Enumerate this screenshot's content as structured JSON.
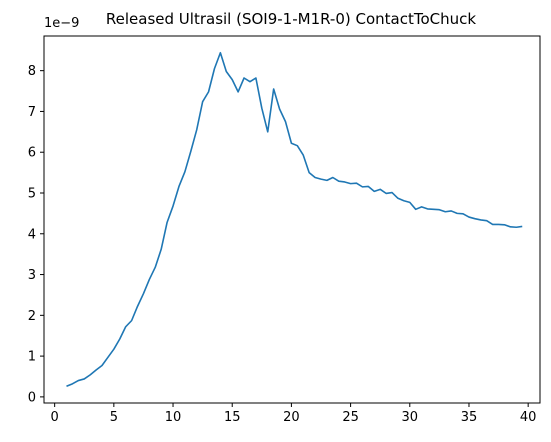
{
  "chart_data": {
    "type": "line",
    "title": "Released Ultrasil (SOI9-1-M1R-0) ContactToChuck",
    "xlabel": "",
    "ylabel": "",
    "y_scale_text": "1e−9",
    "xlim": [
      -0.9,
      41.0
    ],
    "ylim": [
      -0.15,
      8.85
    ],
    "x_ticks": [
      0,
      5,
      10,
      15,
      20,
      25,
      30,
      35,
      40
    ],
    "y_ticks": [
      0,
      1,
      2,
      3,
      4,
      5,
      6,
      7,
      8
    ],
    "grid": false,
    "legend": "none",
    "series": [
      {
        "color": "#1f77b4",
        "x": [
          1.0,
          1.5,
          2.0,
          2.5,
          3.0,
          3.5,
          4.0,
          4.5,
          5.0,
          5.5,
          6.0,
          6.5,
          7.0,
          7.5,
          8.0,
          8.5,
          9.0,
          9.5,
          10.0,
          10.5,
          11.0,
          11.5,
          12.0,
          12.5,
          13.0,
          13.5,
          14.0,
          14.5,
          15.0,
          15.5,
          16.0,
          16.5,
          17.0,
          17.5,
          18.0,
          18.5,
          19.0,
          19.5,
          20.0,
          20.5,
          21.0,
          21.5,
          22.0,
          22.5,
          23.0,
          23.5,
          24.0,
          24.5,
          25.0,
          25.5,
          26.0,
          26.5,
          27.0,
          27.5,
          28.0,
          28.5,
          29.0,
          29.5,
          30.0,
          30.5,
          31.0,
          31.5,
          32.0,
          32.5,
          33.0,
          33.5,
          34.0,
          34.5,
          35.0,
          35.5,
          36.0,
          36.5,
          37.0,
          37.5,
          38.0,
          38.5,
          39.0,
          39.5
        ],
        "y": [
          0.26,
          0.32,
          0.4,
          0.44,
          0.54,
          0.66,
          0.77,
          0.97,
          1.17,
          1.42,
          1.72,
          1.87,
          2.22,
          2.53,
          2.88,
          3.18,
          3.62,
          4.28,
          4.68,
          5.16,
          5.52,
          6.02,
          6.55,
          7.24,
          7.48,
          8.05,
          8.44,
          7.98,
          7.78,
          7.48,
          7.82,
          7.73,
          7.82,
          7.08,
          6.5,
          7.55,
          7.06,
          6.75,
          6.22,
          6.16,
          5.93,
          5.5,
          5.38,
          5.34,
          5.31,
          5.38,
          5.29,
          5.27,
          5.23,
          5.24,
          5.15,
          5.16,
          5.04,
          5.09,
          4.99,
          5.01,
          4.87,
          4.81,
          4.77,
          4.6,
          4.66,
          4.61,
          4.6,
          4.59,
          4.54,
          4.56,
          4.5,
          4.49,
          4.41,
          4.37,
          4.34,
          4.32,
          4.23,
          4.23,
          4.22,
          4.17,
          4.16,
          4.18
        ]
      }
    ]
  }
}
